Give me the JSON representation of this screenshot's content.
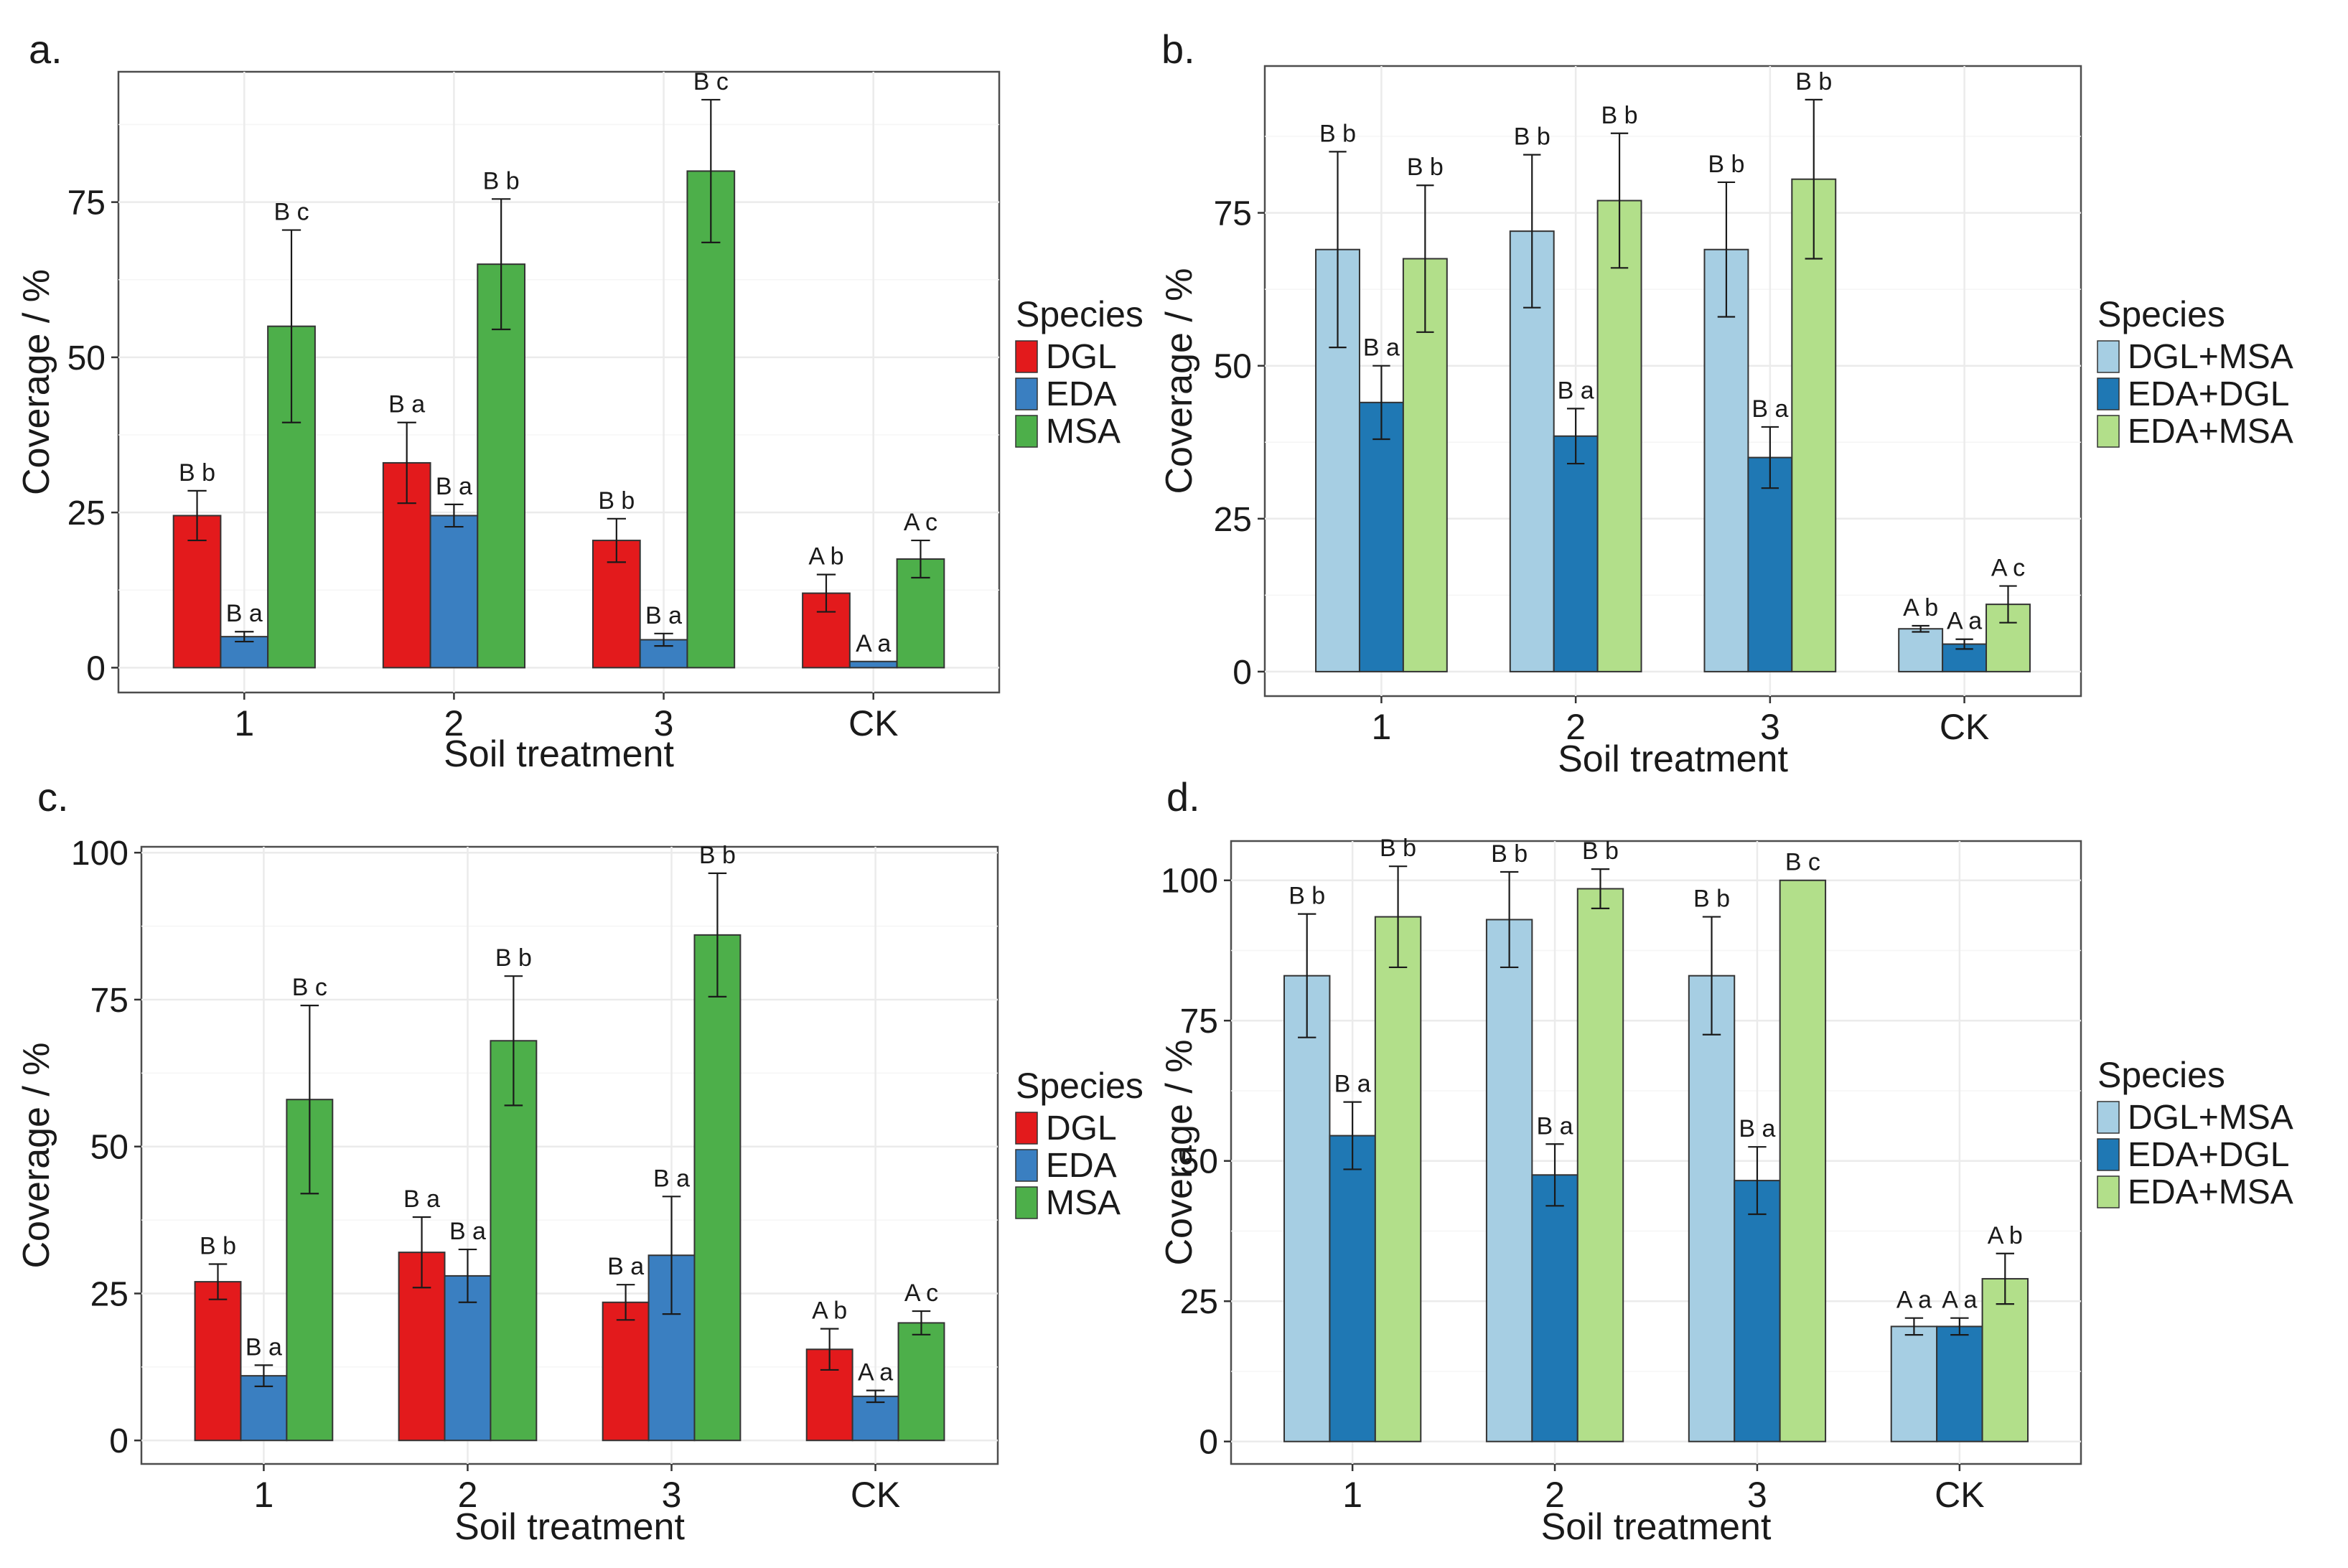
{
  "chart_data": [
    {
      "panel": "a.",
      "type": "bar",
      "xlabel": "Soil treatment",
      "ylabel": "Coverage  / %",
      "categories": [
        "1",
        "2",
        "3",
        "CK"
      ],
      "ylim": [
        -4,
        96
      ],
      "yticks": [
        0,
        25,
        50,
        75
      ],
      "legend": {
        "title": "Species",
        "position": "right"
      },
      "series": [
        {
          "name": "DGL",
          "color": "#e31a1c",
          "values": [
            24.5,
            33,
            20.5,
            12
          ],
          "errors": [
            4,
            6.5,
            3.5,
            3
          ],
          "letters": [
            "B b",
            "B a",
            "B b",
            "A b"
          ]
        },
        {
          "name": "EDA",
          "color": "#3a7fc1",
          "values": [
            5,
            24.5,
            4.5,
            1
          ],
          "errors": [
            0.8,
            1.8,
            1,
            0
          ],
          "letters": [
            "B a",
            "B a",
            "B a",
            "A a"
          ]
        },
        {
          "name": "MSA",
          "color": "#4daf4a",
          "values": [
            55,
            65,
            80,
            17.5
          ],
          "errors": [
            15.5,
            10.5,
            11.5,
            3
          ],
          "letters": [
            "B c",
            "B b",
            "B c",
            "A c"
          ]
        }
      ]
    },
    {
      "panel": "b.",
      "type": "bar",
      "xlabel": "Soil treatment",
      "ylabel": "Coverage  / %",
      "categories": [
        "1",
        "2",
        "3",
        "CK"
      ],
      "ylim": [
        -4,
        99
      ],
      "yticks": [
        0,
        25,
        50,
        75
      ],
      "legend": {
        "title": "Species",
        "position": "right"
      },
      "series": [
        {
          "name": "DGL+MSA",
          "color": "#a6cee3",
          "values": [
            69,
            72,
            69,
            7
          ],
          "errors": [
            16,
            12.5,
            11,
            0.5
          ],
          "letters": [
            "B b",
            "B b",
            "B b",
            "A b"
          ]
        },
        {
          "name": "EDA+DGL",
          "color": "#1f78b4",
          "values": [
            44,
            38.5,
            35,
            4.5
          ],
          "errors": [
            6,
            4.5,
            5,
            0.8
          ],
          "letters": [
            "B a",
            "B a",
            "B a",
            "A a"
          ]
        },
        {
          "name": "EDA+MSA",
          "color": "#b2df8a",
          "values": [
            67.5,
            77,
            80.5,
            11
          ],
          "errors": [
            12,
            11,
            13,
            3
          ],
          "letters": [
            "B b",
            "B b",
            "B b",
            "A c"
          ]
        }
      ]
    },
    {
      "panel": "c.",
      "type": "bar",
      "xlabel": "Soil treatment",
      "ylabel": "Coverage  / %",
      "categories": [
        "1",
        "2",
        "3",
        "CK"
      ],
      "ylim": [
        -4,
        101
      ],
      "yticks": [
        0,
        25,
        50,
        75,
        100
      ],
      "legend": {
        "title": "Species",
        "position": "right"
      },
      "series": [
        {
          "name": "DGL",
          "color": "#e31a1c",
          "values": [
            27,
            32,
            23.5,
            15.5
          ],
          "errors": [
            3,
            6,
            3,
            3.5
          ],
          "letters": [
            "B b",
            "B a",
            "B a",
            "A b"
          ]
        },
        {
          "name": "EDA",
          "color": "#3a7fc1",
          "values": [
            11,
            28,
            31.5,
            7.5
          ],
          "errors": [
            1.8,
            4.5,
            10,
            1
          ],
          "letters": [
            "B a",
            "B a",
            "B a",
            "A a"
          ]
        },
        {
          "name": "MSA",
          "color": "#4daf4a",
          "values": [
            58,
            68,
            86,
            20
          ],
          "errors": [
            16,
            11,
            10.5,
            2
          ],
          "letters": [
            "B c",
            "B b",
            "B b",
            "A c"
          ]
        }
      ]
    },
    {
      "panel": "d.",
      "type": "bar",
      "xlabel": "Soil treatment",
      "ylabel": "Coverage  / %",
      "categories": [
        "1",
        "2",
        "3",
        "CK"
      ],
      "ylim": [
        -4,
        107
      ],
      "yticks": [
        0,
        25,
        50,
        75,
        100
      ],
      "legend": {
        "title": "Species",
        "position": "right"
      },
      "series": [
        {
          "name": "DGL+MSA",
          "color": "#a6cee3",
          "values": [
            83,
            93,
            83,
            20.5
          ],
          "errors": [
            11,
            8.5,
            10.5,
            1.5
          ],
          "letters": [
            "B b",
            "B b",
            "B b",
            "A a"
          ]
        },
        {
          "name": "EDA+DGL",
          "color": "#1f78b4",
          "values": [
            54.5,
            47.5,
            46.5,
            20.5
          ],
          "errors": [
            6,
            5.5,
            6,
            1.5
          ],
          "letters": [
            "B a",
            "B a",
            "B a",
            "A a"
          ]
        },
        {
          "name": "EDA+MSA",
          "color": "#b2df8a",
          "values": [
            93.5,
            98.5,
            100,
            29
          ],
          "errors": [
            9,
            3.5,
            0,
            4.5
          ],
          "letters": [
            "B b",
            "B b",
            "B c",
            "A b"
          ]
        }
      ]
    }
  ]
}
